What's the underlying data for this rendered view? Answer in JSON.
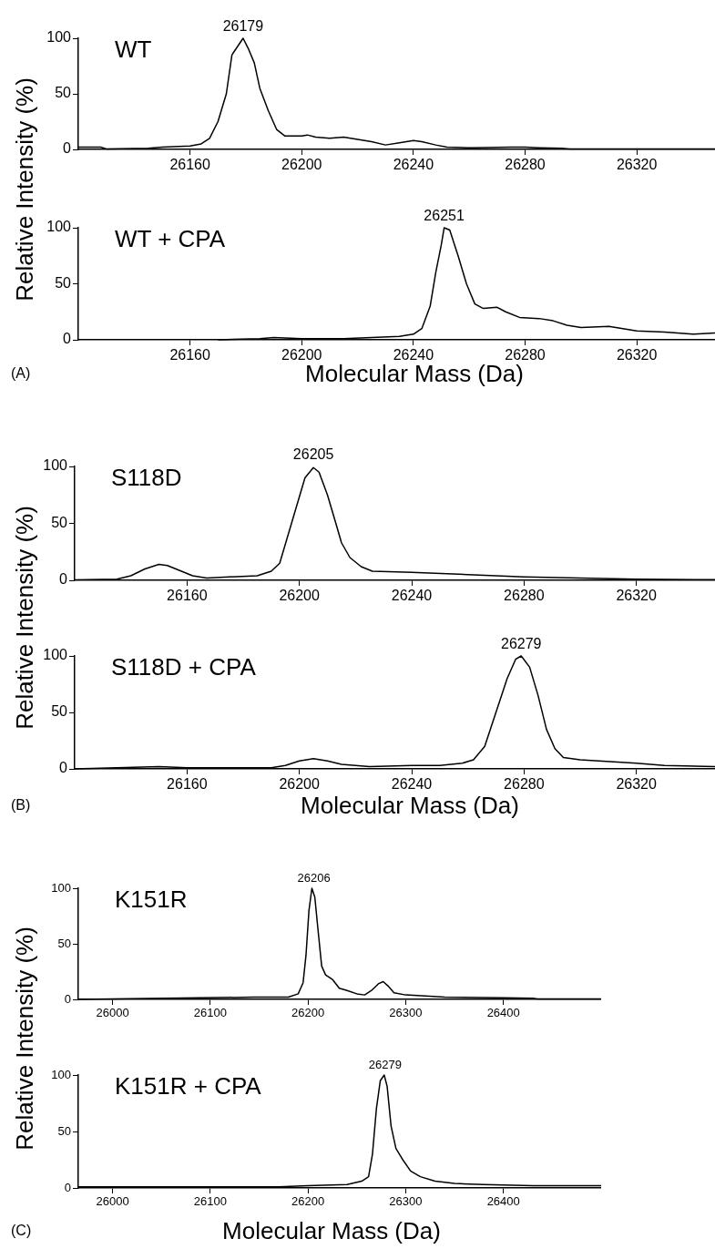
{
  "chart_data": [
    {
      "type": "line",
      "title": "WT",
      "ylabel": "Relative Intensity (%)",
      "xlim": [
        26120,
        26348
      ],
      "xticks": [
        26160,
        26200,
        26240,
        26280,
        26320
      ],
      "ylim": [
        0,
        100
      ],
      "yticks": [
        0,
        50,
        100
      ],
      "annotations": [
        {
          "text": "26179",
          "x": 26179,
          "y": 100
        }
      ],
      "x": [
        26120,
        26128,
        26130,
        26145,
        26150,
        26160,
        26164,
        26167,
        26170,
        26173,
        26175,
        26179,
        26181,
        26183,
        26185,
        26188,
        26191,
        26194,
        26200,
        26202,
        26205,
        26210,
        26215,
        26220,
        26225,
        26230,
        26235,
        26240,
        26243,
        26248,
        26252,
        26260,
        26275,
        26280,
        26285,
        26293,
        26296,
        26300,
        26348
      ],
      "series": [
        {
          "color": "#000000",
          "values": [
            2,
            2,
            0.5,
            1,
            2,
            3,
            5,
            10,
            25,
            50,
            85,
            100,
            90,
            78,
            55,
            35,
            18,
            12,
            12,
            13,
            11,
            10,
            11,
            9,
            7,
            4,
            6,
            8,
            7,
            4,
            2,
            1.5,
            2,
            2,
            1.5,
            1,
            0.5,
            0.5,
            0.5
          ]
        }
      ]
    },
    {
      "type": "line",
      "title": "WT + CPA",
      "xlabel": "Molecular Mass (Da)",
      "xlim": [
        26120,
        26348
      ],
      "xticks": [
        26160,
        26200,
        26240,
        26280,
        26320
      ],
      "ylim": [
        0,
        100
      ],
      "yticks": [
        0,
        50,
        100
      ],
      "annotations": [
        {
          "text": "26251",
          "x": 26251,
          "y": 100
        },
        "(A)"
      ],
      "x": [
        26170,
        26185,
        26190,
        26200,
        26215,
        26225,
        26235,
        26240,
        26243,
        26246,
        26248,
        26250,
        26251,
        26253,
        26256,
        26259,
        26262,
        26265,
        26270,
        26273,
        26278,
        26285,
        26290,
        26295,
        26300,
        26310,
        26315,
        26320,
        26330,
        26340,
        26348
      ],
      "series": [
        {
          "color": "#000000",
          "values": [
            0,
            1,
            2,
            1,
            1,
            2,
            3,
            5,
            10,
            30,
            60,
            85,
            100,
            98,
            75,
            50,
            32,
            28,
            29,
            25,
            20,
            19,
            17,
            13,
            11,
            12,
            10,
            8,
            7,
            5,
            6
          ]
        }
      ]
    },
    {
      "type": "line",
      "title": "S118D",
      "ylabel": "Relative Intensity (%)",
      "xlim": [
        26120,
        26348
      ],
      "xticks": [
        26160,
        26200,
        26240,
        26280,
        26320
      ],
      "ylim": [
        0,
        100
      ],
      "yticks": [
        0,
        50,
        100
      ],
      "annotations": [
        {
          "text": "26205",
          "x": 26205,
          "y": 100
        }
      ],
      "x": [
        26120,
        26135,
        26140,
        26145,
        26150,
        26153,
        26157,
        26162,
        26167,
        26175,
        26185,
        26190,
        26193,
        26196,
        26199,
        26202,
        26205,
        26207,
        26210,
        26213,
        26215,
        26218,
        26222,
        26226,
        26240,
        26260,
        26280,
        26300,
        26320,
        26348
      ],
      "series": [
        {
          "color": "#000000",
          "values": [
            0.5,
            1,
            4,
            10,
            14,
            13,
            9,
            4,
            2,
            3,
            4,
            8,
            15,
            40,
            65,
            90,
            99,
            95,
            75,
            50,
            33,
            20,
            12,
            8,
            7,
            5,
            3,
            2,
            1,
            0.5
          ]
        }
      ]
    },
    {
      "type": "line",
      "title": "S118D + CPA",
      "xlabel": "Molecular Mass (Da)",
      "xlim": [
        26120,
        26348
      ],
      "xticks": [
        26160,
        26200,
        26240,
        26280,
        26320
      ],
      "ylim": [
        0,
        100
      ],
      "yticks": [
        0,
        50,
        100
      ],
      "annotations": [
        {
          "text": "26279",
          "x": 26279,
          "y": 100
        },
        "(B)"
      ],
      "x": [
        26120,
        26135,
        26150,
        26160,
        26190,
        26195,
        26200,
        26205,
        26210,
        26215,
        26225,
        26240,
        26250,
        26258,
        26262,
        26266,
        26270,
        26274,
        26277,
        26279,
        26282,
        26285,
        26288,
        26291,
        26294,
        26300,
        26320,
        26330,
        26348
      ],
      "series": [
        {
          "color": "#000000",
          "values": [
            0,
            1,
            2,
            1,
            1,
            3,
            7,
            9,
            7,
            4,
            2,
            3,
            3,
            5,
            8,
            20,
            50,
            80,
            97,
            100,
            90,
            65,
            35,
            18,
            10,
            8,
            5,
            3,
            2
          ]
        }
      ]
    },
    {
      "type": "line",
      "title": "K151R",
      "ylabel": "Relative Intensity (%)",
      "xlim": [
        25965,
        26500
      ],
      "xticks": [
        26000,
        26100,
        26200,
        26300,
        26400
      ],
      "ylim": [
        0,
        100
      ],
      "yticks": [
        0,
        50,
        100
      ],
      "annotations": [
        {
          "text": "26206",
          "x": 26206,
          "y": 100
        }
      ],
      "x": [
        25965,
        26145,
        26180,
        26190,
        26195,
        26198,
        26201,
        26204,
        26207,
        26210,
        26214,
        26218,
        26225,
        26232,
        26240,
        26250,
        26258,
        26265,
        26272,
        26277,
        26282,
        26288,
        26300,
        26320,
        26340,
        26400,
        26430,
        26435,
        26500
      ],
      "series": [
        {
          "color": "#000000",
          "values": [
            0,
            2,
            2,
            5,
            15,
            40,
            80,
            100,
            92,
            65,
            30,
            22,
            18,
            10,
            8,
            5,
            4,
            8,
            14,
            16,
            12,
            6,
            4,
            3,
            2,
            1.5,
            1,
            0.5,
            0.5
          ]
        }
      ]
    },
    {
      "type": "line",
      "title": "K151R + CPA",
      "xlabel": "Molecular Mass (Da)",
      "xlim": [
        25965,
        26500
      ],
      "xticks": [
        26000,
        26100,
        26200,
        26300,
        26400
      ],
      "ylim": [
        0,
        100
      ],
      "yticks": [
        0,
        50,
        100
      ],
      "annotations": [
        {
          "text": "26279",
          "x": 26279,
          "y": 100
        },
        "(C)"
      ],
      "x": [
        25965,
        26100,
        26170,
        26200,
        26240,
        26255,
        26262,
        26266,
        26270,
        26274,
        26278,
        26281,
        26285,
        26290,
        26297,
        26305,
        26315,
        26330,
        26350,
        26380,
        26430,
        26500
      ],
      "series": [
        {
          "color": "#000000",
          "values": [
            1,
            1,
            1,
            2,
            3,
            6,
            10,
            30,
            70,
            95,
            100,
            90,
            55,
            35,
            25,
            15,
            10,
            6,
            4,
            3,
            2,
            2
          ]
        }
      ]
    }
  ]
}
